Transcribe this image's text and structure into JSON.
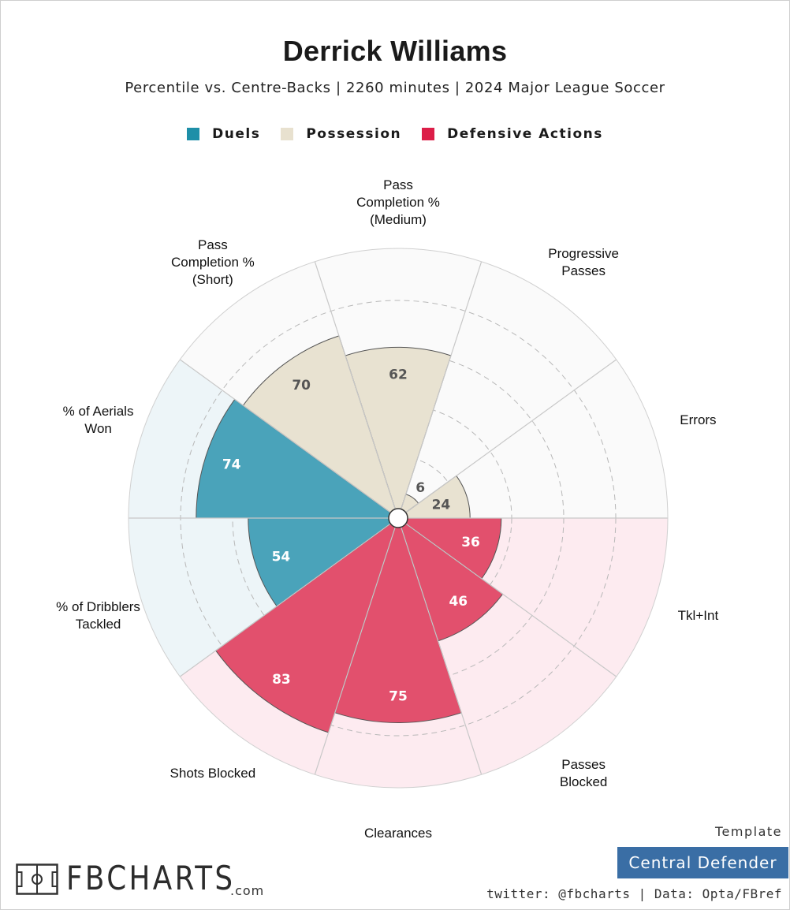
{
  "chart_data": {
    "type": "polar-bar",
    "title": "Derrick Williams",
    "subtitle": "Percentile vs. Centre-Backs | 2260 minutes | 2024 Major League Soccer",
    "rlim": [
      0,
      100
    ],
    "gridlines": [
      20,
      40,
      60,
      80
    ],
    "legend": [
      {
        "name": "Duels",
        "color": "#1e8fa8"
      },
      {
        "name": "Possession",
        "color": "#e8e1cf"
      },
      {
        "name": "Defensive Actions",
        "color": "#dc1e48"
      }
    ],
    "categories": [
      {
        "label": "Pass\nCompletion %\n(Medium)",
        "value": 62,
        "group": "Possession"
      },
      {
        "label": "Progressive\nPasses",
        "value": 6,
        "group": "Possession"
      },
      {
        "label": "Errors",
        "value": 24,
        "group": "Possession"
      },
      {
        "label": "Tkl+Int",
        "value": 36,
        "group": "Defensive Actions"
      },
      {
        "label": "Passes\nBlocked",
        "value": 46,
        "group": "Defensive Actions"
      },
      {
        "label": "Clearances",
        "value": 75,
        "group": "Defensive Actions"
      },
      {
        "label": "Shots Blocked",
        "value": 83,
        "group": "Defensive Actions"
      },
      {
        "label": "% of Dribblers\nTackled",
        "value": 54,
        "group": "Duels"
      },
      {
        "label": "% of Aerials\nWon",
        "value": 74,
        "group": "Duels"
      },
      {
        "label": "Pass\nCompletion %\n(Short)",
        "value": 70,
        "group": "Possession"
      }
    ]
  },
  "branding": {
    "logo": "FBCHARTS",
    "logo_suffix": ".com",
    "template_label": "Template",
    "template_name": "Central Defender",
    "credit": "twitter: @fbcharts | Data: Opta/FBref"
  },
  "colors": {
    "duels": "#4aa3ba",
    "possession": "#e8e2d1",
    "defensive": "#e2506d",
    "duels_bg": "#edf5f8",
    "possession_bg": "#fafafa",
    "defensive_bg": "#fdebf0",
    "badge": "#3a6ea5"
  }
}
